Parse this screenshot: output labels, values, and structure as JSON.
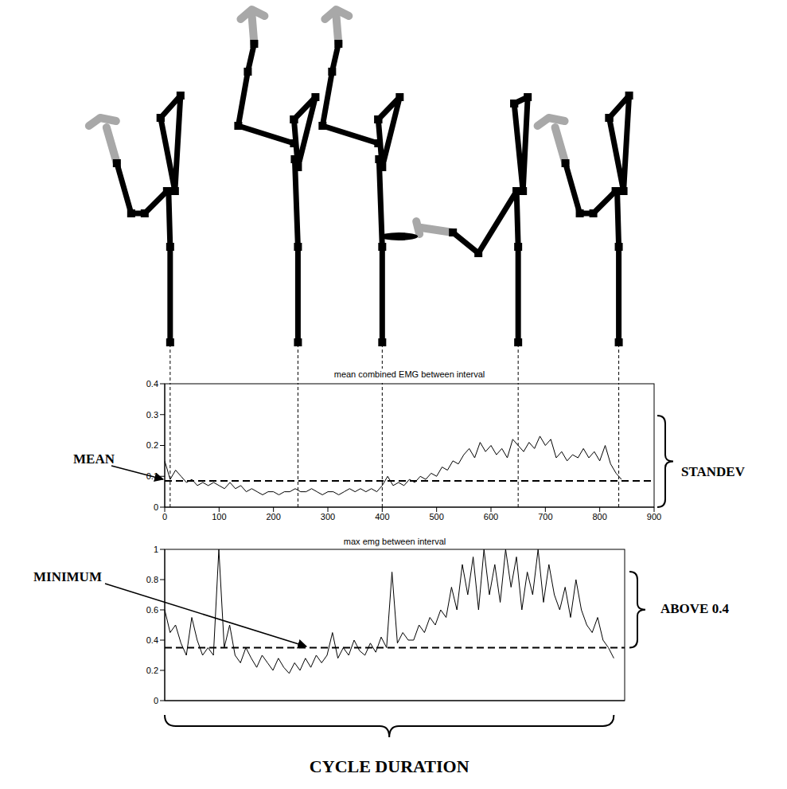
{
  "chart_data": [
    {
      "type": "line",
      "title": "mean combined EMG between interval",
      "x": [
        0,
        10,
        20,
        30,
        40,
        50,
        60,
        70,
        80,
        90,
        100,
        110,
        120,
        130,
        140,
        150,
        160,
        170,
        180,
        190,
        200,
        210,
        220,
        230,
        240,
        250,
        260,
        270,
        280,
        290,
        300,
        310,
        320,
        330,
        340,
        350,
        360,
        370,
        380,
        390,
        400,
        410,
        420,
        430,
        440,
        450,
        460,
        470,
        480,
        490,
        500,
        510,
        520,
        530,
        540,
        550,
        560,
        570,
        580,
        590,
        600,
        610,
        620,
        630,
        640,
        650,
        660,
        670,
        680,
        690,
        700,
        710,
        720,
        730,
        740,
        750,
        760,
        770,
        780,
        790,
        800,
        810,
        820,
        830,
        840
      ],
      "values": [
        0.15,
        0.09,
        0.12,
        0.1,
        0.08,
        0.09,
        0.07,
        0.08,
        0.07,
        0.08,
        0.07,
        0.06,
        0.08,
        0.06,
        0.07,
        0.05,
        0.06,
        0.05,
        0.04,
        0.05,
        0.05,
        0.04,
        0.05,
        0.05,
        0.06,
        0.05,
        0.05,
        0.06,
        0.05,
        0.04,
        0.05,
        0.05,
        0.04,
        0.05,
        0.06,
        0.05,
        0.06,
        0.05,
        0.06,
        0.05,
        0.07,
        0.1,
        0.07,
        0.08,
        0.07,
        0.09,
        0.08,
        0.1,
        0.09,
        0.11,
        0.1,
        0.13,
        0.12,
        0.15,
        0.14,
        0.17,
        0.19,
        0.16,
        0.21,
        0.18,
        0.2,
        0.17,
        0.19,
        0.16,
        0.22,
        0.2,
        0.18,
        0.21,
        0.19,
        0.23,
        0.2,
        0.22,
        0.16,
        0.18,
        0.15,
        0.17,
        0.16,
        0.19,
        0.16,
        0.18,
        0.15,
        0.2,
        0.14,
        0.11,
        0.09
      ],
      "color": "#000000",
      "xlim": [
        0,
        900
      ],
      "xticks": [
        0,
        100,
        200,
        300,
        400,
        500,
        600,
        700,
        800,
        900
      ],
      "ylim": [
        0,
        0.4
      ],
      "yticks": [
        0,
        0.1,
        0.2,
        0.3,
        0.4
      ],
      "reference_line": 0.085,
      "event_x": [
        10,
        245,
        400,
        650,
        835
      ],
      "annotations": [
        "MEAN",
        "STANDEV"
      ]
    },
    {
      "type": "line",
      "title": "max emg between interval",
      "x": [
        0,
        10,
        20,
        30,
        40,
        50,
        60,
        70,
        80,
        90,
        100,
        110,
        120,
        130,
        140,
        150,
        160,
        170,
        180,
        190,
        200,
        210,
        220,
        230,
        240,
        250,
        260,
        270,
        280,
        290,
        300,
        310,
        320,
        330,
        340,
        350,
        360,
        370,
        380,
        390,
        400,
        410,
        420,
        430,
        440,
        450,
        460,
        470,
        480,
        490,
        500,
        510,
        520,
        530,
        540,
        550,
        560,
        570,
        580,
        590,
        600,
        610,
        620,
        630,
        640,
        650,
        660,
        670,
        680,
        690,
        700,
        710,
        720,
        730,
        740,
        750,
        760,
        770,
        780,
        790,
        800,
        810,
        820,
        830
      ],
      "values": [
        0.6,
        0.45,
        0.5,
        0.38,
        0.3,
        0.55,
        0.4,
        0.3,
        0.35,
        0.3,
        1.0,
        0.35,
        0.5,
        0.3,
        0.25,
        0.35,
        0.28,
        0.22,
        0.3,
        0.25,
        0.2,
        0.28,
        0.22,
        0.18,
        0.25,
        0.2,
        0.28,
        0.22,
        0.3,
        0.25,
        0.3,
        0.45,
        0.28,
        0.35,
        0.3,
        0.4,
        0.33,
        0.3,
        0.38,
        0.32,
        0.42,
        0.35,
        0.85,
        0.38,
        0.45,
        0.4,
        0.4,
        0.5,
        0.45,
        0.55,
        0.5,
        0.6,
        0.55,
        0.75,
        0.6,
        0.9,
        0.7,
        0.95,
        0.6,
        1.0,
        0.7,
        0.9,
        0.65,
        1.0,
        0.75,
        0.95,
        0.6,
        0.85,
        0.7,
        1.0,
        0.65,
        0.9,
        0.7,
        0.6,
        0.75,
        0.55,
        0.8,
        0.6,
        0.5,
        0.45,
        0.55,
        0.4,
        0.35,
        0.28
      ],
      "color": "#000000",
      "xlim": [
        0,
        850
      ],
      "ylim": [
        0,
        1
      ],
      "yticks": [
        0,
        0.2,
        0.4,
        0.6,
        0.8,
        1
      ],
      "tick_labels": "y",
      "reference_line": 0.35,
      "annotations": [
        "MINIMUM",
        "ABOVE 0.4",
        "CYCLE DURATION"
      ]
    }
  ]
}
